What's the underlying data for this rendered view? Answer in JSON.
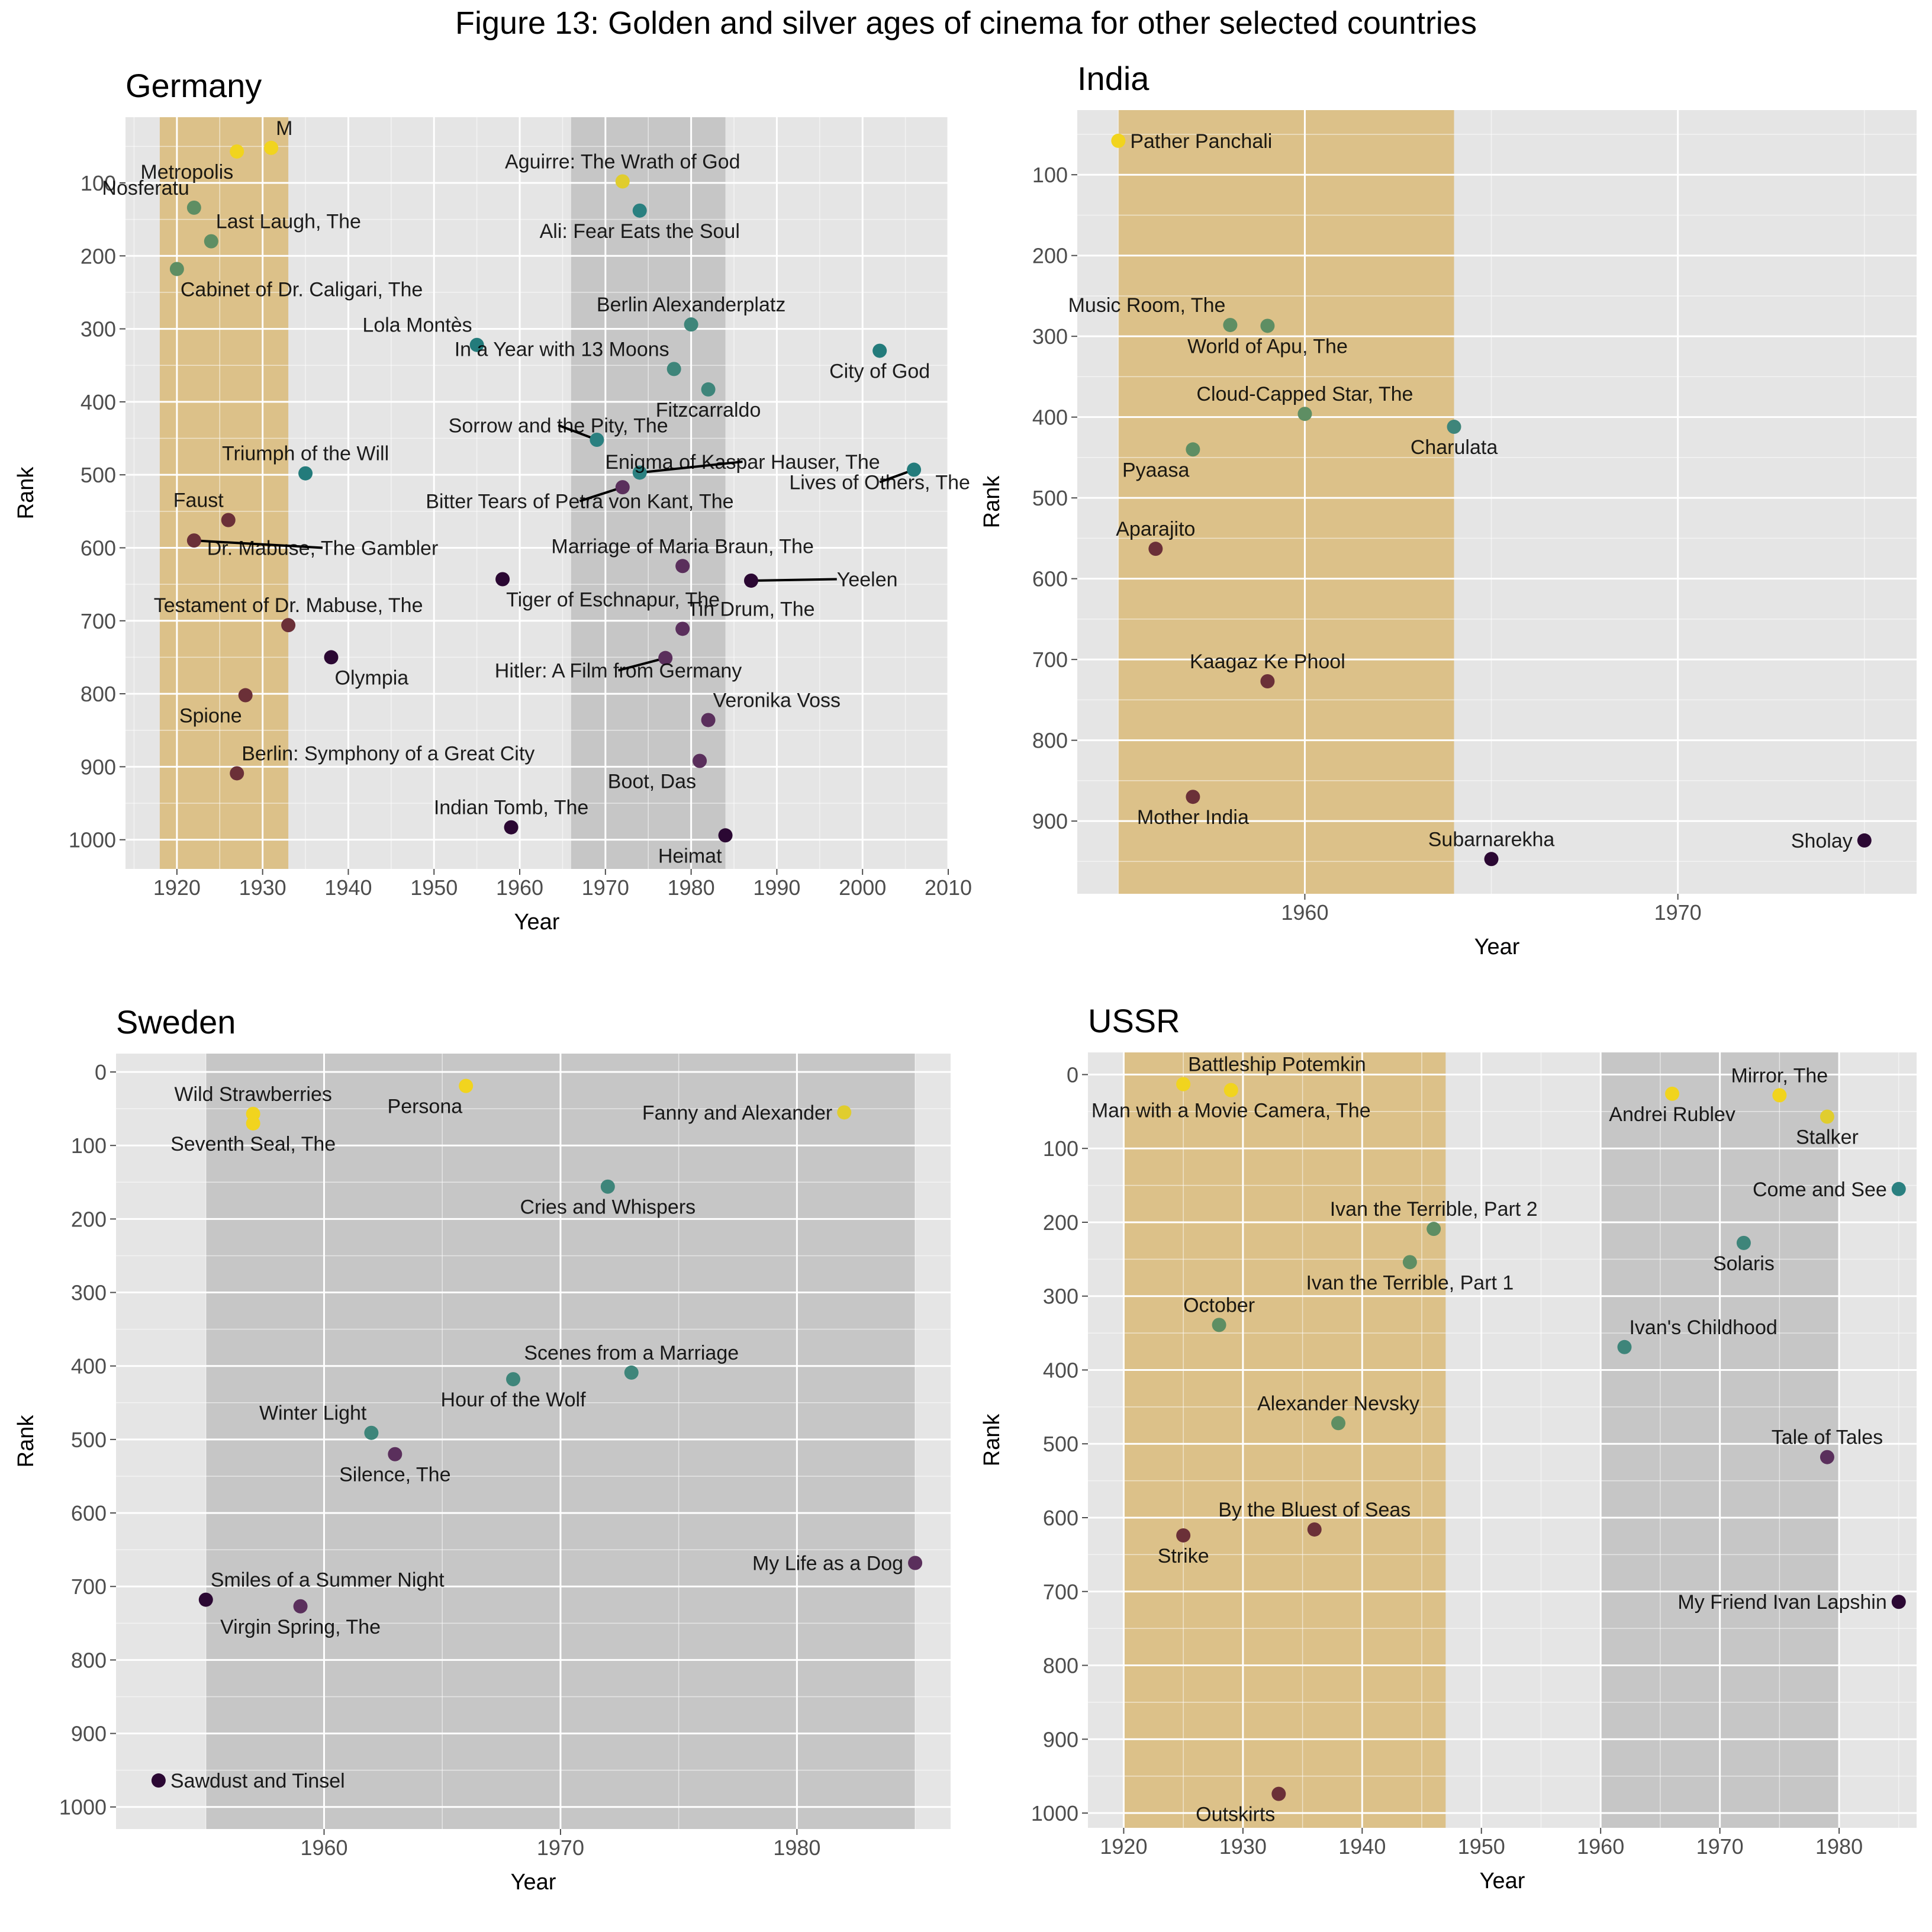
{
  "figure": {
    "title": "Figure 13: Golden and silver ages of cinema for other selected countries"
  },
  "colors": {
    "panel_bg": "#E5E5E5",
    "grid": "#FFFFFF",
    "golden_band": "#DCC189",
    "silver_band": "#C6C6C6",
    "rank_1": "#F1D41E",
    "rank_200": "#5E8E63",
    "rank_350": "#2A8080",
    "rank_600": "#6B3038",
    "rank_1000": "#2B0833"
  },
  "chart_data": [
    {
      "type": "scatter",
      "title": "Germany",
      "xlabel": "Year",
      "ylabel": "Rank",
      "xlim": [
        1914,
        2010
      ],
      "ylim": [
        1040,
        10
      ],
      "y_reversed": true,
      "xticks": [
        1920,
        1930,
        1940,
        1950,
        1960,
        1970,
        1980,
        1990,
        2000,
        2010
      ],
      "yticks": [
        100,
        200,
        300,
        400,
        500,
        600,
        700,
        800,
        900,
        1000
      ],
      "grid": true,
      "golden_age": [
        1918,
        1933
      ],
      "silver_age": [
        1966,
        1984
      ],
      "points": [
        {
          "label": "Metropolis",
          "x": 1927,
          "y": 57,
          "c": "#F1D41E",
          "lp": "bl"
        },
        {
          "label": "M",
          "x": 1931,
          "y": 52,
          "c": "#F1D41E",
          "lp": "ar"
        },
        {
          "label": "Nosferatu",
          "x": 1922,
          "y": 134,
          "c": "#5E8E63",
          "lp": "al"
        },
        {
          "label": "Last Laugh, The",
          "x": 1924,
          "y": 180,
          "c": "#5E8E63",
          "lp": "ar"
        },
        {
          "label": "Cabinet of Dr. Caligari, The",
          "x": 1920,
          "y": 218,
          "c": "#5E8E63",
          "lp": "br"
        },
        {
          "label": "Aguirre: The Wrath of God",
          "x": 1972,
          "y": 98,
          "c": "#E0CD2E",
          "lp": "a"
        },
        {
          "label": "Ali: Fear Eats the Soul",
          "x": 1974,
          "y": 138,
          "c": "#2A8080",
          "lp": "b"
        },
        {
          "label": "Berlin Alexanderplatz",
          "x": 1980,
          "y": 294,
          "c": "#3E857A",
          "lp": "a"
        },
        {
          "label": "Lola Montès",
          "x": 1955,
          "y": 322,
          "c": "#237B7B",
          "lp": "al"
        },
        {
          "label": "In a Year with 13 Moons",
          "x": 1978,
          "y": 355,
          "c": "#3E857A",
          "lp": "al"
        },
        {
          "label": "City of God",
          "x": 2002,
          "y": 330,
          "c": "#237B7B",
          "lp": "b"
        },
        {
          "label": "Fitzcarraldo",
          "x": 1982,
          "y": 383,
          "c": "#3E857A",
          "lp": "b"
        },
        {
          "label": "Sorrow and the Pity, The",
          "x": 1969,
          "y": 452,
          "c": "#2A8080",
          "lp": "lead",
          "lx": 1964.5,
          "ly": 432,
          "lanchor": "middle"
        },
        {
          "label": "Enigma of Kaspar Hauser, The",
          "x": 1974,
          "y": 497,
          "c": "#2A8080",
          "lp": "lead",
          "lx": 1986,
          "ly": 482,
          "lanchor": "middle"
        },
        {
          "label": "Bitter Tears of Petra von Kant, The",
          "x": 1972,
          "y": 517,
          "c": "#5A2F5C",
          "lp": "lead",
          "lx": 1967,
          "ly": 536,
          "lanchor": "middle"
        },
        {
          "label": "Triumph of the Will",
          "x": 1935,
          "y": 498,
          "c": "#237B7B",
          "lp": "a"
        },
        {
          "label": "Lives of Others, The",
          "x": 2006,
          "y": 493,
          "c": "#237B7B",
          "lp": "lead",
          "lx": 2002,
          "ly": 510,
          "lanchor": "middle"
        },
        {
          "label": "Faust",
          "x": 1926,
          "y": 562,
          "c": "#6B3038",
          "lp": "al"
        },
        {
          "label": "Dr. Mabuse, The Gambler",
          "x": 1922,
          "y": 590,
          "c": "#6B3038",
          "lp": "lead",
          "lx": 1937,
          "ly": 600,
          "lanchor": "middle"
        },
        {
          "label": "Marriage of Maria Braun, The",
          "x": 1979,
          "y": 625,
          "c": "#5A2F5C",
          "lp": "a"
        },
        {
          "label": "Tiger of Eschnapur, The",
          "x": 1958,
          "y": 643,
          "c": "#2B0833",
          "lp": "br"
        },
        {
          "label": "Yeelen",
          "x": 1987,
          "y": 645,
          "c": "#2B0833",
          "lp": "lead",
          "lx": 1997,
          "ly": 643,
          "lanchor": "start"
        },
        {
          "label": "Testament of Dr. Mabuse, The",
          "x": 1933,
          "y": 706,
          "c": "#6B3038",
          "lp": "a"
        },
        {
          "label": "Tin Drum, The",
          "x": 1979,
          "y": 711,
          "c": "#5A2F5C",
          "lp": "ar"
        },
        {
          "label": "Olympia",
          "x": 1938,
          "y": 750,
          "c": "#2B0833",
          "lp": "br"
        },
        {
          "label": "Hitler: A Film from Germany",
          "x": 1977,
          "y": 751,
          "c": "#5A2F5C",
          "lp": "lead",
          "lx": 1971.5,
          "ly": 768,
          "lanchor": "middle"
        },
        {
          "label": "Spione",
          "x": 1928,
          "y": 802,
          "c": "#6B3038",
          "lp": "bl"
        },
        {
          "label": "Veronika Voss",
          "x": 1982,
          "y": 836,
          "c": "#5A2F5C",
          "lp": "ar"
        },
        {
          "label": "Berlin: Symphony of a Great City",
          "x": 1927,
          "y": 909,
          "c": "#6B3038",
          "lp": "ar"
        },
        {
          "label": "Boot, Das",
          "x": 1981,
          "y": 892,
          "c": "#5A2F5C",
          "lp": "bl"
        },
        {
          "label": "Indian Tomb, The",
          "x": 1959,
          "y": 983,
          "c": "#2B0833",
          "lp": "a"
        },
        {
          "label": "Heimat",
          "x": 1984,
          "y": 994,
          "c": "#2B0833",
          "lp": "bl"
        }
      ]
    },
    {
      "type": "scatter",
      "title": "India",
      "xlabel": "Year",
      "ylabel": "Rank",
      "xlim": [
        1953.9,
        1976.4
      ],
      "ylim": [
        990,
        20
      ],
      "y_reversed": true,
      "xticks": [
        1960,
        1970
      ],
      "yticks": [
        100,
        200,
        300,
        400,
        500,
        600,
        700,
        800,
        900
      ],
      "grid": true,
      "golden_age": [
        1955,
        1964
      ],
      "silver_age": null,
      "points": [
        {
          "label": "Pather Panchali",
          "x": 1955,
          "y": 58,
          "c": "#F1D41E",
          "lp": "r"
        },
        {
          "label": "Music Room, The",
          "x": 1958,
          "y": 286,
          "c": "#5E8E63",
          "lp": "al"
        },
        {
          "label": "World of Apu, The",
          "x": 1959,
          "y": 287,
          "c": "#5E8E63",
          "lp": "b"
        },
        {
          "label": "Cloud-Capped Star, The",
          "x": 1960,
          "y": 396,
          "c": "#5E8E63",
          "lp": "a"
        },
        {
          "label": "Charulata",
          "x": 1964,
          "y": 412,
          "c": "#3E857A",
          "lp": "b"
        },
        {
          "label": "Pyaasa",
          "x": 1957,
          "y": 440,
          "c": "#5E8E63",
          "lp": "bl"
        },
        {
          "label": "Aparajito",
          "x": 1956,
          "y": 563,
          "c": "#6B3038",
          "lp": "a"
        },
        {
          "label": "Kaagaz Ke Phool",
          "x": 1959,
          "y": 727,
          "c": "#6B3038",
          "lp": "a"
        },
        {
          "label": "Mother India",
          "x": 1957,
          "y": 870,
          "c": "#6B3038",
          "lp": "b"
        },
        {
          "label": "Subarnarekha",
          "x": 1965,
          "y": 947,
          "c": "#2B0833",
          "lp": "a"
        },
        {
          "label": "Sholay",
          "x": 1975,
          "y": 924,
          "c": "#2B0833",
          "lp": "l"
        }
      ]
    },
    {
      "type": "scatter",
      "title": "Sweden",
      "xlabel": "Year",
      "ylabel": "Rank",
      "xlim": [
        1951.2,
        1986.5
      ],
      "ylim": [
        1030,
        -25
      ],
      "y_reversed": true,
      "xticks": [
        1960,
        1970,
        1980
      ],
      "yticks": [
        0,
        100,
        200,
        300,
        400,
        500,
        600,
        700,
        800,
        900,
        1000
      ],
      "grid": true,
      "golden_age": null,
      "silver_age": [
        1955,
        1985
      ],
      "points": [
        {
          "label": "Persona",
          "x": 1966,
          "y": 19,
          "c": "#F1D41E",
          "lp": "bl"
        },
        {
          "label": "Wild Strawberries",
          "x": 1957,
          "y": 57,
          "c": "#F1D41E",
          "lp": "a"
        },
        {
          "label": "Seventh Seal, The",
          "x": 1957,
          "y": 70,
          "c": "#F1D41E",
          "lp": "b"
        },
        {
          "label": "Fanny and Alexander",
          "x": 1982,
          "y": 55,
          "c": "#E0CD2E",
          "lp": "l"
        },
        {
          "label": "Cries and Whispers",
          "x": 1972,
          "y": 156,
          "c": "#3E857A",
          "lp": "b"
        },
        {
          "label": "Scenes from a Marriage",
          "x": 1973,
          "y": 409,
          "c": "#3E857A",
          "lp": "a"
        },
        {
          "label": "Hour of the Wolf",
          "x": 1968,
          "y": 418,
          "c": "#3E857A",
          "lp": "b"
        },
        {
          "label": "Winter Light",
          "x": 1962,
          "y": 491,
          "c": "#3E857A",
          "lp": "al"
        },
        {
          "label": "Silence, The",
          "x": 1963,
          "y": 520,
          "c": "#5A2F5C",
          "lp": "b"
        },
        {
          "label": "My Life as a Dog",
          "x": 1985,
          "y": 668,
          "c": "#5A2F5C",
          "lp": "l"
        },
        {
          "label": "Smiles of a Summer Night",
          "x": 1955,
          "y": 718,
          "c": "#2B0833",
          "lp": "ar"
        },
        {
          "label": "Virgin Spring, The",
          "x": 1959,
          "y": 727,
          "c": "#5A2F5C",
          "lp": "b"
        },
        {
          "label": "Sawdust and Tinsel",
          "x": 1953,
          "y": 964,
          "c": "#2B0833",
          "lp": "r"
        }
      ]
    },
    {
      "type": "scatter",
      "title": "USSR",
      "xlabel": "Year",
      "ylabel": "Rank",
      "xlim": [
        1917,
        1986.5
      ],
      "ylim": [
        1020,
        -30
      ],
      "y_reversed": true,
      "xticks": [
        1920,
        1930,
        1940,
        1950,
        1960,
        1970,
        1980
      ],
      "yticks": [
        0,
        100,
        200,
        300,
        400,
        500,
        600,
        700,
        800,
        900,
        1000
      ],
      "grid": true,
      "golden_age": [
        1920,
        1947
      ],
      "silver_age": [
        1960,
        1980
      ],
      "points": [
        {
          "label": "Battleship Potemkin",
          "x": 1925,
          "y": 13,
          "c": "#F1D41E",
          "lp": "ar"
        },
        {
          "label": "Man with a Movie Camera, The",
          "x": 1929,
          "y": 21,
          "c": "#F1D41E",
          "lp": "b"
        },
        {
          "label": "Andrei Rublev",
          "x": 1966,
          "y": 26,
          "c": "#F1D41E",
          "lp": "b"
        },
        {
          "label": "Mirror, The",
          "x": 1975,
          "y": 28,
          "c": "#F1D41E",
          "lp": "a"
        },
        {
          "label": "Stalker",
          "x": 1979,
          "y": 57,
          "c": "#E0CD2E",
          "lp": "b"
        },
        {
          "label": "Come and See",
          "x": 1985,
          "y": 155,
          "c": "#2A8080",
          "lp": "l"
        },
        {
          "label": "Ivan the Terrible, Part 2",
          "x": 1946,
          "y": 209,
          "c": "#5E8E63",
          "lp": "a"
        },
        {
          "label": "Solaris",
          "x": 1972,
          "y": 228,
          "c": "#3E857A",
          "lp": "b"
        },
        {
          "label": "Ivan the Terrible, Part 1",
          "x": 1944,
          "y": 254,
          "c": "#5E8E63",
          "lp": "b"
        },
        {
          "label": "October",
          "x": 1928,
          "y": 339,
          "c": "#5E8E63",
          "lp": "a"
        },
        {
          "label": "Ivan's Childhood",
          "x": 1962,
          "y": 369,
          "c": "#3E857A",
          "lp": "ar"
        },
        {
          "label": "Alexander Nevsky",
          "x": 1938,
          "y": 472,
          "c": "#5E8E63",
          "lp": "a"
        },
        {
          "label": "Tale of Tales",
          "x": 1979,
          "y": 518,
          "c": "#5A2F5C",
          "lp": "a"
        },
        {
          "label": "By the Bluest of Seas",
          "x": 1936,
          "y": 616,
          "c": "#6B3038",
          "lp": "a"
        },
        {
          "label": "Strike",
          "x": 1925,
          "y": 624,
          "c": "#6B3038",
          "lp": "b"
        },
        {
          "label": "My Friend Ivan Lapshin",
          "x": 1985,
          "y": 714,
          "c": "#2B0833",
          "lp": "l"
        },
        {
          "label": "Outskirts",
          "x": 1933,
          "y": 974,
          "c": "#6B3038",
          "lp": "bl"
        }
      ]
    }
  ]
}
